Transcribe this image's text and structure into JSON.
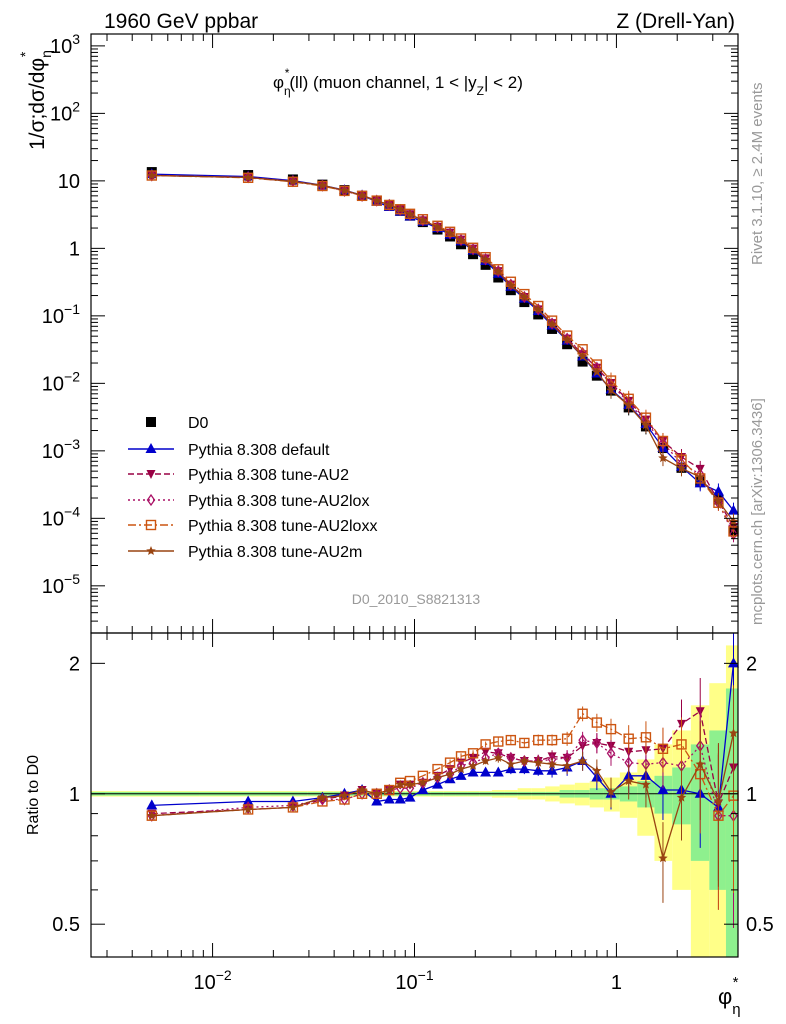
{
  "header": {
    "left": "1960 GeV ppbar",
    "right": "Z (Drell-Yan)"
  },
  "side_labels": {
    "rivet": "Rivet 3.1.10, ≥ 2.4M events",
    "mcplots": "mcplots.cern.ch [arXiv:1306.3436]"
  },
  "chart_data": [
    {
      "type": "scatter",
      "title": "φ*η(ll) (muon channel, 1 < |yZ| < 2)",
      "title_parts": {
        "phi": "φ",
        "star": "*",
        "eta": "η",
        "pre": "(ll) (muon channel, 1 < |y",
        "z": "Z",
        "post": "| < 2)"
      },
      "analysis_id": "D0_2010_S8821313",
      "ylabel": "1/σ;dσ/dφ*η",
      "ylabel_parts": {
        "main": "1/σ;dσ/dφ",
        "star": "*",
        "eta": "η"
      },
      "xlabel": "φ*η",
      "xlabel_parts": {
        "phi": "φ",
        "star": "*",
        "eta": "η"
      },
      "xscale": "log",
      "yscale": "log",
      "xlim": [
        0.0025,
        4.0
      ],
      "ylim": [
        2e-06,
        1500
      ],
      "x_ticks": [
        {
          "value": 0.01,
          "base": "10",
          "exp": "−2"
        },
        {
          "value": 0.1,
          "base": "10",
          "exp": "−1"
        },
        {
          "value": 1,
          "base": "1",
          "exp": ""
        }
      ],
      "y_ticks": [
        {
          "value": 1e-05,
          "base": "10",
          "exp": "−5"
        },
        {
          "value": 0.0001,
          "base": "10",
          "exp": "−4"
        },
        {
          "value": 0.001,
          "base": "10",
          "exp": "−3"
        },
        {
          "value": 0.01,
          "base": "10",
          "exp": "−2"
        },
        {
          "value": 0.1,
          "base": "10",
          "exp": "−1"
        },
        {
          "value": 1,
          "base": "1",
          "exp": ""
        },
        {
          "value": 10,
          "base": "10",
          "exp": ""
        },
        {
          "value": 100,
          "base": "10",
          "exp": "2"
        },
        {
          "value": 1000,
          "base": "10",
          "exp": "3"
        }
      ],
      "legend_position": "bottom-left",
      "x": [
        0.005,
        0.015,
        0.025,
        0.035,
        0.045,
        0.055,
        0.065,
        0.075,
        0.085,
        0.095,
        0.11,
        0.13,
        0.15,
        0.17,
        0.195,
        0.225,
        0.26,
        0.3,
        0.35,
        0.41,
        0.48,
        0.57,
        0.68,
        0.8,
        0.94,
        1.15,
        1.4,
        1.7,
        2.1,
        2.6,
        3.2,
        3.8
      ],
      "series": [
        {
          "name": "D0",
          "color": "#000000",
          "marker": "square",
          "dash": "none",
          "values": [
            13.5,
            12.2,
            10.5,
            8.8,
            7.3,
            6.0,
            5.1,
            4.3,
            3.6,
            3.05,
            2.45,
            1.9,
            1.5,
            1.15,
            0.82,
            0.57,
            0.37,
            0.24,
            0.16,
            0.105,
            0.064,
            0.038,
            0.021,
            0.013,
            0.0078,
            0.0044,
            0.0023,
            0.0011,
            0.00056,
            0.00035,
            0.00019,
            6.5e-05
          ]
        },
        {
          "name": "Pythia 8.308 default",
          "color": "#0000cc",
          "marker": "triangle-up",
          "dash": "none",
          "values": [
            12.6,
            11.6,
            10.1,
            8.6,
            7.3,
            6.1,
            4.9,
            4.1,
            3.5,
            2.96,
            2.48,
            1.99,
            1.6,
            1.27,
            0.93,
            0.65,
            0.42,
            0.27,
            0.18,
            0.118,
            0.072,
            0.043,
            0.025,
            0.014,
            0.0081,
            0.0048,
            0.0025,
            0.0011,
            0.00058,
            0.00033,
            0.00025,
            0.00013
          ]
        },
        {
          "name": "Pythia 8.308 tune-AU2",
          "color": "#990044",
          "marker": "triangle-down",
          "dash": "6,3",
          "values": [
            12.1,
            11.2,
            9.8,
            8.5,
            7.2,
            6.1,
            5.1,
            4.4,
            3.8,
            3.2,
            2.6,
            2.09,
            1.71,
            1.35,
            0.99,
            0.71,
            0.46,
            0.29,
            0.19,
            0.125,
            0.078,
            0.046,
            0.027,
            0.017,
            0.0101,
            0.0055,
            0.0029,
            0.0014,
            0.00081,
            0.00054,
            0.00018,
            7.5e-05
          ]
        },
        {
          "name": "Pythia 8.308 tune-AU2lox",
          "color": "#aa1166",
          "marker": "diamond",
          "dash": "2,3",
          "values": [
            12.0,
            11.3,
            9.9,
            8.5,
            7.1,
            6.0,
            5.1,
            4.4,
            3.7,
            3.15,
            2.6,
            2.07,
            1.67,
            1.33,
            0.97,
            0.69,
            0.46,
            0.29,
            0.19,
            0.125,
            0.077,
            0.046,
            0.028,
            0.017,
            0.0097,
            0.0052,
            0.0027,
            0.0013,
            0.00065,
            0.00045,
            0.00017,
            5.8e-05
          ]
        },
        {
          "name": "Pythia 8.308 tune-AU2loxx",
          "color": "#cc5511",
          "marker": "square-open",
          "dash": "8,3,2,3",
          "values": [
            12.0,
            11.1,
            9.7,
            8.4,
            7.1,
            6.0,
            5.1,
            4.4,
            3.8,
            3.25,
            2.7,
            2.16,
            1.76,
            1.4,
            1.02,
            0.74,
            0.49,
            0.32,
            0.21,
            0.14,
            0.085,
            0.051,
            0.032,
            0.019,
            0.011,
            0.0059,
            0.0031,
            0.0014,
            0.00074,
            0.00039,
            0.00017,
            6.4e-05
          ]
        },
        {
          "name": "Pythia 8.308 tune-AU2m",
          "color": "#994411",
          "marker": "star",
          "dash": "none",
          "values": [
            12.0,
            11.2,
            9.8,
            8.6,
            7.2,
            6.1,
            5.1,
            4.4,
            3.8,
            3.2,
            2.6,
            2.07,
            1.67,
            1.31,
            0.95,
            0.68,
            0.45,
            0.28,
            0.19,
            0.124,
            0.075,
            0.044,
            0.025,
            0.0147,
            0.0079,
            0.0047,
            0.0024,
            0.00078,
            0.00055,
            0.00041,
            0.00018,
            9e-05
          ]
        }
      ]
    },
    {
      "type": "scatter",
      "title": "",
      "ylabel": "Ratio to D0",
      "xscale": "log",
      "yscale": "log",
      "xlim": [
        0.0025,
        4.0
      ],
      "ylim": [
        0.42,
        2.35
      ],
      "y_ticks": [
        {
          "value": 0.5,
          "label": "0.5"
        },
        {
          "value": 1,
          "label": "1"
        },
        {
          "value": 2,
          "label": "2"
        }
      ],
      "bands": {
        "inner_color": "#8ef08e",
        "outer_color": "#ffff88",
        "inner_halfwidth": [
          0.01,
          0.01,
          0.01,
          0.01,
          0.01,
          0.01,
          0.01,
          0.01,
          0.01,
          0.01,
          0.01,
          0.01,
          0.01,
          0.01,
          0.01,
          0.01,
          0.01,
          0.01,
          0.01,
          0.01,
          0.01,
          0.02,
          0.02,
          0.03,
          0.03,
          0.04,
          0.07,
          0.1,
          0.15,
          0.3,
          0.4,
          0.75
        ],
        "outer_halfwidth": [
          0.015,
          0.015,
          0.015,
          0.015,
          0.015,
          0.015,
          0.015,
          0.015,
          0.015,
          0.015,
          0.015,
          0.015,
          0.015,
          0.015,
          0.015,
          0.015,
          0.02,
          0.02,
          0.03,
          0.03,
          0.04,
          0.05,
          0.06,
          0.07,
          0.09,
          0.12,
          0.2,
          0.3,
          0.4,
          0.6,
          0.8,
          1.2
        ]
      },
      "series": [
        {
          "name": "Pythia 8.308 default",
          "values": [
            0.94,
            0.96,
            0.96,
            0.98,
            1.0,
            1.02,
            0.96,
            0.97,
            0.97,
            0.98,
            1.02,
            1.05,
            1.08,
            1.1,
            1.12,
            1.12,
            1.12,
            1.14,
            1.14,
            1.13,
            1.13,
            1.15,
            1.19,
            1.09,
            1.0,
            1.1,
            1.1,
            1.02,
            1.02,
            1.0,
            0.93,
            2.0
          ],
          "errors": [
            0.01,
            0.01,
            0.01,
            0.01,
            0.01,
            0.01,
            0.01,
            0.01,
            0.01,
            0.01,
            0.01,
            0.01,
            0.01,
            0.02,
            0.02,
            0.02,
            0.02,
            0.03,
            0.03,
            0.03,
            0.04,
            0.05,
            0.06,
            0.07,
            0.08,
            0.1,
            0.12,
            0.15,
            0.2,
            0.25,
            0.3,
            0.35
          ]
        },
        {
          "name": "Pythia 8.308 tune-AU2",
          "values": [
            0.9,
            0.92,
            0.93,
            0.97,
            0.99,
            1.02,
            1.0,
            1.02,
            1.05,
            1.05,
            1.06,
            1.1,
            1.14,
            1.18,
            1.21,
            1.25,
            1.24,
            1.21,
            1.19,
            1.19,
            1.22,
            1.21,
            1.29,
            1.31,
            1.29,
            1.25,
            1.26,
            1.27,
            1.45,
            1.55,
            0.95,
            1.15
          ],
          "errors": [
            0.01,
            0.01,
            0.01,
            0.01,
            0.01,
            0.01,
            0.01,
            0.01,
            0.01,
            0.01,
            0.01,
            0.01,
            0.02,
            0.02,
            0.02,
            0.02,
            0.03,
            0.03,
            0.03,
            0.04,
            0.04,
            0.05,
            0.06,
            0.07,
            0.08,
            0.1,
            0.12,
            0.15,
            0.2,
            0.3,
            0.35,
            0.4
          ]
        },
        {
          "name": "Pythia 8.308 tune-AU2lox",
          "values": [
            0.89,
            0.93,
            0.94,
            0.97,
            0.97,
            1.0,
            1.0,
            1.02,
            1.03,
            1.03,
            1.06,
            1.09,
            1.11,
            1.16,
            1.18,
            1.21,
            1.24,
            1.21,
            1.19,
            1.19,
            1.2,
            1.21,
            1.33,
            1.31,
            1.24,
            1.18,
            1.17,
            1.18,
            1.16,
            1.29,
            0.89,
            0.89
          ],
          "errors": [
            0.01,
            0.01,
            0.01,
            0.01,
            0.01,
            0.01,
            0.01,
            0.01,
            0.01,
            0.01,
            0.01,
            0.01,
            0.02,
            0.02,
            0.02,
            0.02,
            0.03,
            0.03,
            0.03,
            0.04,
            0.04,
            0.05,
            0.06,
            0.07,
            0.08,
            0.1,
            0.12,
            0.15,
            0.2,
            0.3,
            0.35,
            0.4
          ]
        },
        {
          "name": "Pythia 8.308 tune-AU2loxx",
          "values": [
            0.89,
            0.92,
            0.93,
            0.96,
            0.97,
            1.0,
            1.0,
            1.02,
            1.06,
            1.07,
            1.1,
            1.14,
            1.18,
            1.22,
            1.24,
            1.3,
            1.32,
            1.33,
            1.31,
            1.33,
            1.33,
            1.34,
            1.53,
            1.46,
            1.41,
            1.34,
            1.35,
            1.27,
            1.3,
            1.11,
            0.89,
            0.99
          ],
          "errors": [
            0.01,
            0.01,
            0.01,
            0.01,
            0.01,
            0.01,
            0.01,
            0.01,
            0.01,
            0.01,
            0.01,
            0.01,
            0.02,
            0.02,
            0.02,
            0.02,
            0.03,
            0.03,
            0.03,
            0.04,
            0.04,
            0.05,
            0.06,
            0.07,
            0.08,
            0.1,
            0.12,
            0.15,
            0.2,
            0.3,
            0.35,
            0.4
          ]
        },
        {
          "name": "Pythia 8.308 tune-AU2m",
          "values": [
            0.89,
            0.92,
            0.93,
            0.98,
            0.99,
            1.02,
            1.0,
            1.02,
            1.05,
            1.05,
            1.06,
            1.09,
            1.11,
            1.14,
            1.16,
            1.19,
            1.21,
            1.17,
            1.19,
            1.18,
            1.17,
            1.16,
            1.19,
            1.13,
            1.01,
            1.07,
            1.05,
            0.71,
            0.98,
            1.17,
            0.96,
            1.38
          ],
          "errors": [
            0.01,
            0.01,
            0.01,
            0.01,
            0.01,
            0.01,
            0.01,
            0.01,
            0.01,
            0.01,
            0.01,
            0.01,
            0.02,
            0.02,
            0.02,
            0.02,
            0.03,
            0.03,
            0.03,
            0.04,
            0.04,
            0.05,
            0.06,
            0.07,
            0.08,
            0.1,
            0.12,
            0.15,
            0.2,
            0.3,
            0.35,
            0.4
          ]
        }
      ]
    }
  ]
}
